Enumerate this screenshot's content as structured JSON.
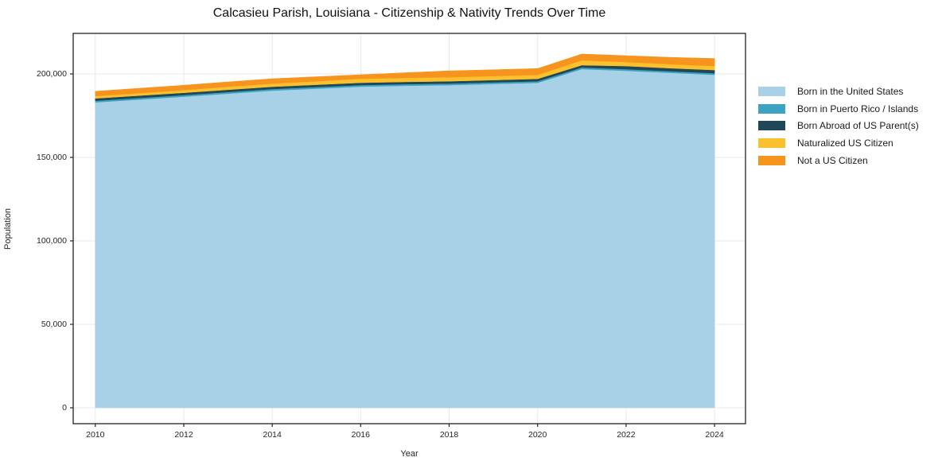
{
  "title": "Calcasieu Parish, Louisiana - Citizenship & Nativity Trends Over Time",
  "chart_data": {
    "type": "area",
    "stacked": true,
    "title": "Calcasieu Parish, Louisiana - Citizenship & Nativity Trends Over Time",
    "xlabel": "Year",
    "ylabel": "Population",
    "x": [
      2010,
      2011,
      2012,
      2013,
      2014,
      2015,
      2016,
      2017,
      2018,
      2019,
      2020,
      2021,
      2022,
      2023,
      2024
    ],
    "series": [
      {
        "name": "Born in the United States",
        "color": "#A8D0E6",
        "values": [
          183000,
          184700,
          186400,
          188200,
          190000,
          191200,
          192400,
          192900,
          193300,
          194000,
          194700,
          202900,
          201900,
          200700,
          199500
        ]
      },
      {
        "name": "Born in Puerto Rico / Islands",
        "color": "#3DA3C2",
        "values": [
          950,
          950,
          950,
          950,
          950,
          950,
          950,
          950,
          950,
          950,
          950,
          950,
          950,
          950,
          950
        ]
      },
      {
        "name": "Born Abroad of US Parent(s)",
        "color": "#1F4757",
        "values": [
          1400,
          1400,
          1400,
          1400,
          1400,
          1400,
          1400,
          1400,
          1400,
          1400,
          1400,
          1400,
          1900,
          1800,
          1900
        ]
      },
      {
        "name": "Naturalized US Citizen",
        "color": "#FBC02D",
        "values": [
          1400,
          1500,
          1600,
          1800,
          1900,
          2100,
          2400,
          2400,
          2400,
          2400,
          2400,
          2900,
          2400,
          2400,
          2400
        ]
      },
      {
        "name": "Not a US Citizen",
        "color": "#F7941E",
        "values": [
          2900,
          2900,
          2900,
          2900,
          2900,
          2700,
          2400,
          3100,
          3800,
          3800,
          3800,
          3800,
          3800,
          4100,
          4500
        ]
      }
    ],
    "xlim": [
      2009.5,
      2024.7
    ],
    "ylim": [
      -9500,
      224300
    ],
    "xticks": [
      2010,
      2012,
      2014,
      2016,
      2018,
      2020,
      2022,
      2024
    ],
    "xtick_labels": [
      "2010",
      "2012",
      "2014",
      "2016",
      "2018",
      "2020",
      "2022",
      "2024"
    ],
    "yticks": [
      0,
      50000,
      100000,
      150000,
      200000
    ],
    "ytick_labels": [
      "0",
      "50,000",
      "100,000",
      "150,000",
      "200,000"
    ],
    "grid": true,
    "grid_color": "#e9e9e9",
    "axis_color": "#222222",
    "background_color": "#ffffff",
    "legend_position": "right"
  }
}
